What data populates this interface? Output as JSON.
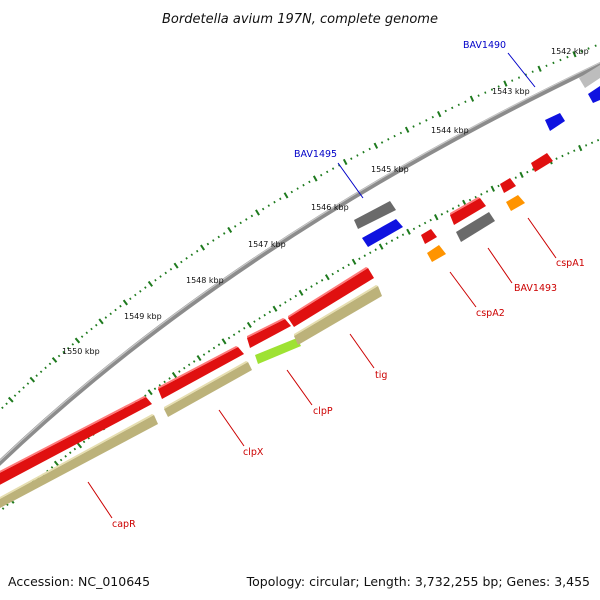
{
  "title": "Bordetella avium 197N, complete genome",
  "footer": {
    "accession": "Accession: NC_010645",
    "stats": "Topology: circular; Length: 3,732,255 bp; Genes: 3,455"
  },
  "colors": {
    "background": "#ffffff",
    "backbone": "#8c8c8c",
    "tick": "#1e7a1e",
    "gene_red": "#e01010",
    "gene_blue": "#0f12e0",
    "gene_grey": "#6a6a6a",
    "gene_lightgrey": "#bdbdbd",
    "gene_orange": "#ff9400",
    "gene_khaki": "#bcb27a",
    "gene_green": "#9ee233",
    "label_red": "#cc0000",
    "label_blue": "#0000c8"
  },
  "kbp_ticks": [
    "1542 kbp",
    "1543 kbp",
    "1544 kbp",
    "1545 kbp",
    "1546 kbp",
    "1547 kbp",
    "1548 kbp",
    "1549 kbp",
    "1550 kbp"
  ],
  "gene_labels": [
    {
      "id": "bav1490",
      "text": "BAV1490",
      "color": "blue"
    },
    {
      "id": "bav1495",
      "text": "BAV1495",
      "color": "blue"
    },
    {
      "id": "cspa1",
      "text": "cspA1",
      "color": "red"
    },
    {
      "id": "bav1493",
      "text": "BAV1493",
      "color": "red"
    },
    {
      "id": "cspa2",
      "text": "cspA2",
      "color": "red"
    },
    {
      "id": "tig",
      "text": "tig",
      "color": "red"
    },
    {
      "id": "clpp",
      "text": "clpP",
      "color": "red"
    },
    {
      "id": "clpx",
      "text": "clpX",
      "color": "red"
    },
    {
      "id": "capr",
      "text": "capR",
      "color": "red"
    }
  ]
}
